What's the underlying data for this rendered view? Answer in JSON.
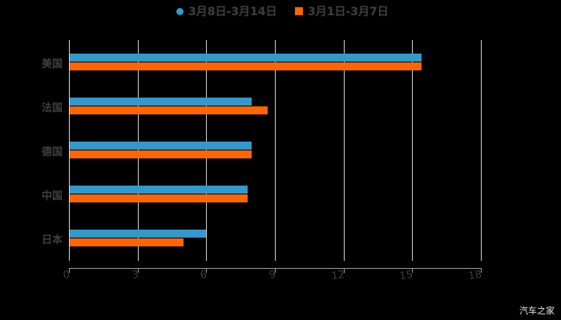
{
  "chart_data": {
    "type": "bar",
    "orientation": "horizontal",
    "title": "",
    "categories": [
      "美国",
      "法国",
      "德国",
      "中国",
      "日本"
    ],
    "series": [
      {
        "name": "3月8日-3月14日",
        "color": "#3399CC",
        "values": [
          15.4,
          8.0,
          8.0,
          7.8,
          6.0
        ]
      },
      {
        "name": "3月1日-3月7日",
        "color": "#FF6600",
        "values": [
          15.4,
          8.7,
          8.0,
          7.8,
          5.0
        ]
      }
    ],
    "xlabel": "",
    "ylabel": "",
    "xlim": [
      0,
      18
    ],
    "x_ticks": [
      "0",
      "3",
      "6",
      "9",
      "12",
      "15",
      "18"
    ],
    "grid": true,
    "legend_position": "top"
  },
  "legend": [
    {
      "label": "3月8日-3月14日",
      "color": "#3399CC",
      "marker": "circle"
    },
    {
      "label": "3月1日-3月7日",
      "color": "#FF6600",
      "marker": "square"
    }
  ],
  "watermark": "汽车之家"
}
